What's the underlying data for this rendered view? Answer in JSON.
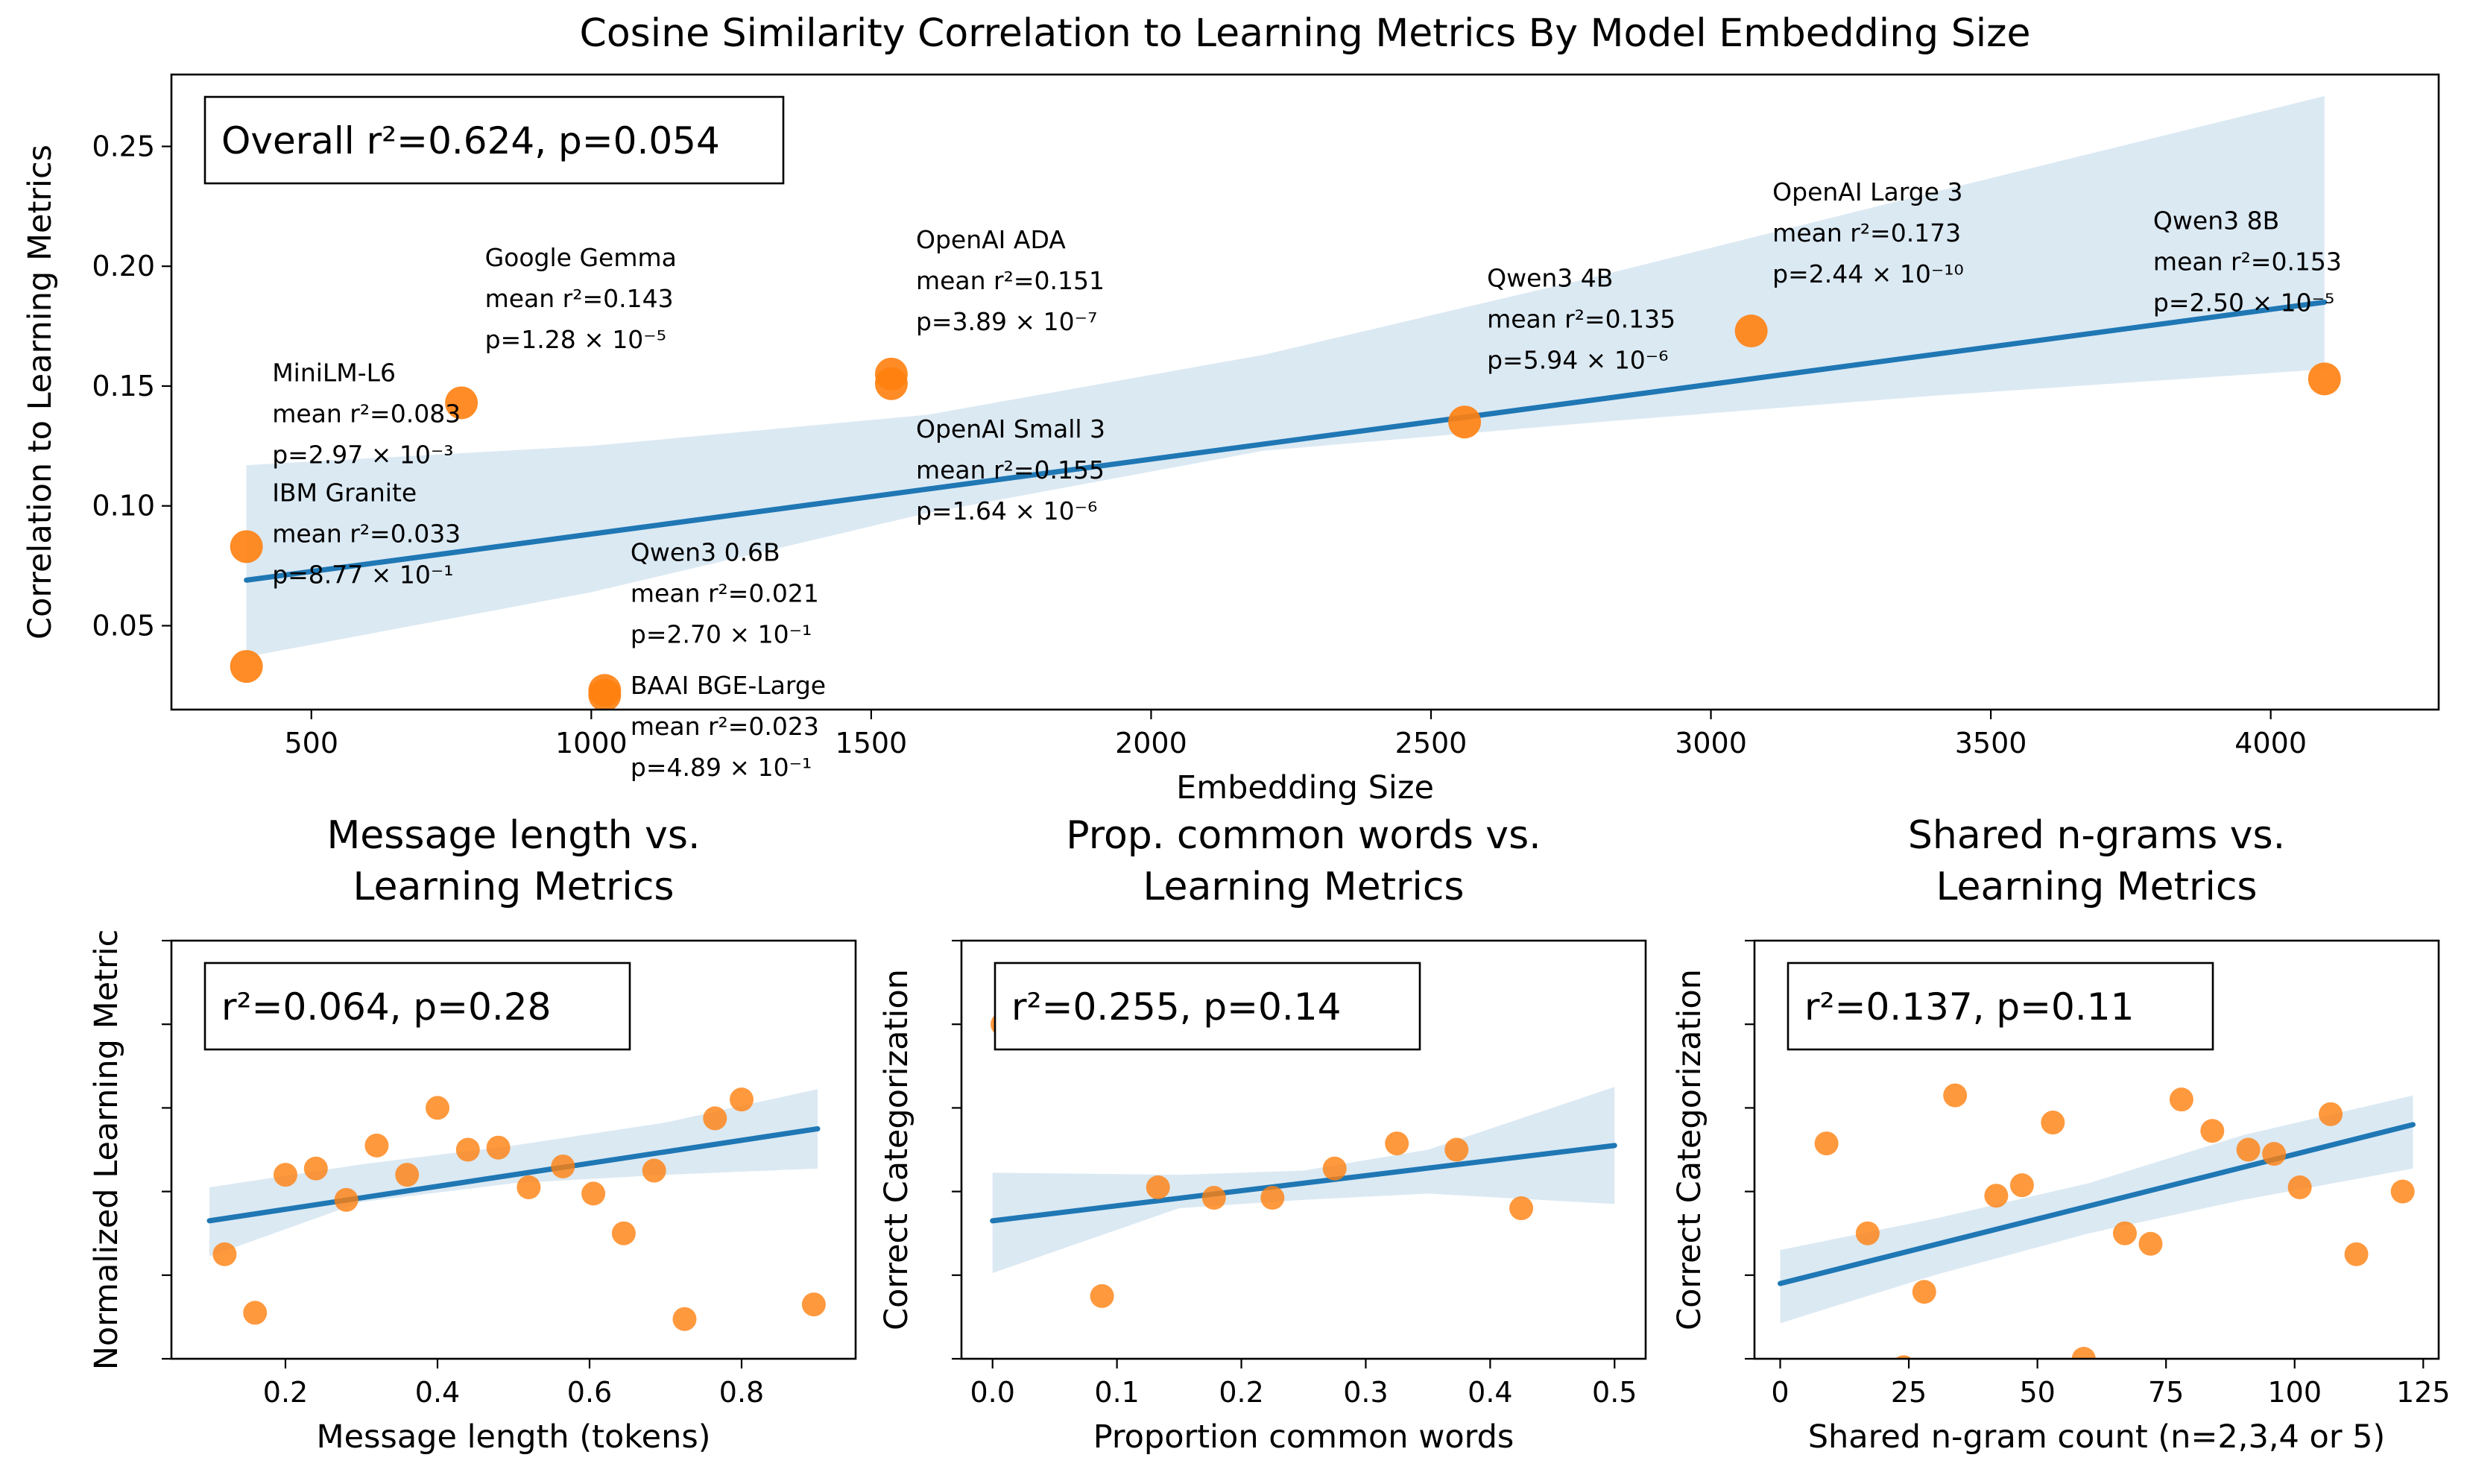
{
  "colors": {
    "points": "#ff7f0e",
    "fit": "#1f77b4",
    "band": "#1f77b4"
  },
  "chart_data": [
    {
      "type": "scatter",
      "title": "Cosine Similarity Correlation to Learning Metrics By Model Embedding Size",
      "xlabel": "Embedding Size",
      "ylabel": "Correlation to Learning Metrics",
      "xlim": [
        250,
        4300
      ],
      "ylim": [
        0.015,
        0.28
      ],
      "xticks": [
        500,
        1000,
        1500,
        2000,
        2500,
        3000,
        3500,
        4000
      ],
      "yticks": [
        0.05,
        0.1,
        0.15,
        0.2,
        0.25
      ],
      "stat": "Overall r²=0.624, p=0.054",
      "fit": {
        "x": [
          384,
          4096
        ],
        "y": [
          0.069,
          0.185
        ]
      },
      "ci_upper": [
        [
          384,
          0.117
        ],
        [
          1000,
          0.125
        ],
        [
          1600,
          0.138
        ],
        [
          2200,
          0.163
        ],
        [
          2800,
          0.196
        ],
        [
          3400,
          0.231
        ],
        [
          4096,
          0.271
        ]
      ],
      "ci_lower": [
        [
          384,
          0.037
        ],
        [
          1000,
          0.064
        ],
        [
          1600,
          0.097
        ],
        [
          2200,
          0.123
        ],
        [
          2800,
          0.135
        ],
        [
          3400,
          0.146
        ],
        [
          4096,
          0.157
        ]
      ],
      "points": [
        {
          "x": 384,
          "y": 0.083
        },
        {
          "x": 384,
          "y": 0.033
        },
        {
          "x": 768,
          "y": 0.143
        },
        {
          "x": 1024,
          "y": 0.021
        },
        {
          "x": 1024,
          "y": 0.023
        },
        {
          "x": 1536,
          "y": 0.151
        },
        {
          "x": 1536,
          "y": 0.155
        },
        {
          "x": 2560,
          "y": 0.135
        },
        {
          "x": 3072,
          "y": 0.173
        },
        {
          "x": 4096,
          "y": 0.153
        }
      ],
      "annotations": [
        {
          "lines": [
            "MiniLM-L6",
            "mean r²=0.083",
            "p=2.97 × 10⁻³"
          ],
          "x": 430,
          "y": 0.152
        },
        {
          "lines": [
            "IBM Granite",
            "mean r²=0.033",
            "p=8.77 × 10⁻¹"
          ],
          "x": 430,
          "y": 0.102
        },
        {
          "lines": [
            "Google Gemma",
            "mean r²=0.143",
            "p=1.28 × 10⁻⁵"
          ],
          "x": 810,
          "y": 0.2
        },
        {
          "lines": [
            "Qwen3 0.6B",
            "mean r²=0.021",
            "p=2.70 × 10⁻¹"
          ],
          "x": 1070,
          "y": 0.077
        },
        {
          "lines": [
            "BAAI BGE-Large",
            "mean r²=0.023",
            "p=4.89 × 10⁻¹"
          ],
          "x": 1070,
          "y": 0.0215
        },
        {
          "lines": [
            "OpenAI ADA",
            "mean r²=0.151",
            "p=3.89 × 10⁻⁷"
          ],
          "x": 1580,
          "y": 0.2075
        },
        {
          "lines": [
            "OpenAI Small 3",
            "mean r²=0.155",
            "p=1.64 × 10⁻⁶"
          ],
          "x": 1580,
          "y": 0.1285
        },
        {
          "lines": [
            "Qwen3 4B",
            "mean r²=0.135",
            "p=5.94 × 10⁻⁶"
          ],
          "x": 2600,
          "y": 0.1915
        },
        {
          "lines": [
            "OpenAI Large 3",
            "mean r²=0.173",
            "p=2.44 × 10⁻¹⁰"
          ],
          "x": 3110,
          "y": 0.2275
        },
        {
          "lines": [
            "Qwen3 8B",
            "mean r²=0.153",
            "p=2.50 × 10⁻⁵"
          ],
          "x": 3790,
          "y": 0.2155
        }
      ]
    },
    {
      "type": "scatter",
      "title": [
        "Message length vs.",
        "Learning Metrics"
      ],
      "xlabel": "Message length (tokens)",
      "ylabel": "Normalized Learning Metric",
      "xlim": [
        0.05,
        0.95
      ],
      "ylim": [
        0,
        1
      ],
      "xticks": [
        0.2,
        0.4,
        0.6,
        0.8
      ],
      "yticks": [
        0,
        0.2,
        0.4,
        0.6,
        0.8,
        1.0
      ],
      "show_ytick_labels": false,
      "stat": "r²=0.064, p=0.28",
      "fit": {
        "x": [
          0.1,
          0.9
        ],
        "y": [
          0.33,
          0.55
        ]
      },
      "ci_upper": [
        [
          0.1,
          0.41
        ],
        [
          0.3,
          0.465
        ],
        [
          0.5,
          0.51
        ],
        [
          0.7,
          0.565
        ],
        [
          0.9,
          0.645
        ]
      ],
      "ci_lower": [
        [
          0.1,
          0.245
        ],
        [
          0.3,
          0.375
        ],
        [
          0.5,
          0.42
        ],
        [
          0.7,
          0.44
        ],
        [
          0.9,
          0.455
        ]
      ],
      "points": [
        {
          "x": 0.12,
          "y": 0.25
        },
        {
          "x": 0.16,
          "y": 0.11
        },
        {
          "x": 0.2,
          "y": 0.44
        },
        {
          "x": 0.24,
          "y": 0.455
        },
        {
          "x": 0.28,
          "y": 0.38
        },
        {
          "x": 0.32,
          "y": 0.51
        },
        {
          "x": 0.36,
          "y": 0.44
        },
        {
          "x": 0.4,
          "y": 0.6
        },
        {
          "x": 0.44,
          "y": 0.5
        },
        {
          "x": 0.48,
          "y": 0.505
        },
        {
          "x": 0.52,
          "y": 0.41
        },
        {
          "x": 0.565,
          "y": 0.46
        },
        {
          "x": 0.605,
          "y": 0.395
        },
        {
          "x": 0.645,
          "y": 0.3
        },
        {
          "x": 0.685,
          "y": 0.45
        },
        {
          "x": 0.725,
          "y": 0.095
        },
        {
          "x": 0.765,
          "y": 0.575
        },
        {
          "x": 0.8,
          "y": 0.62
        },
        {
          "x": 0.895,
          "y": 0.13
        }
      ]
    },
    {
      "type": "scatter",
      "title": [
        "Prop. common words vs.",
        "Learning Metrics"
      ],
      "xlabel": "Proportion common words",
      "ylabel": "Correct Categorization",
      "xlim": [
        -0.025,
        0.525
      ],
      "ylim": [
        0,
        1
      ],
      "xticks": [
        0.0,
        0.1,
        0.2,
        0.3,
        0.4,
        0.5
      ],
      "yticks": [
        0,
        0.2,
        0.4,
        0.6,
        0.8,
        1.0
      ],
      "show_ytick_labels": false,
      "stat": "r²=0.255, p=0.14",
      "fit": {
        "x": [
          0.0,
          0.5
        ],
        "y": [
          0.33,
          0.51
        ]
      },
      "ci_upper": [
        [
          0.0,
          0.445
        ],
        [
          0.15,
          0.44
        ],
        [
          0.25,
          0.45
        ],
        [
          0.35,
          0.5
        ],
        [
          0.5,
          0.65
        ]
      ],
      "ci_lower": [
        [
          0.0,
          0.205
        ],
        [
          0.15,
          0.36
        ],
        [
          0.25,
          0.38
        ],
        [
          0.35,
          0.395
        ],
        [
          0.5,
          0.37
        ]
      ],
      "points": [
        {
          "x": 0.008,
          "y": 0.8
        },
        {
          "x": 0.088,
          "y": 0.15
        },
        {
          "x": 0.133,
          "y": 0.41
        },
        {
          "x": 0.178,
          "y": 0.385
        },
        {
          "x": 0.225,
          "y": 0.385
        },
        {
          "x": 0.275,
          "y": 0.455
        },
        {
          "x": 0.325,
          "y": 0.515
        },
        {
          "x": 0.373,
          "y": 0.5
        },
        {
          "x": 0.425,
          "y": 0.36
        }
      ]
    },
    {
      "type": "scatter",
      "title": [
        "Shared n-grams vs.",
        "Learning Metrics"
      ],
      "xlabel": "Shared n-gram count (n=2,3,4 or 5)",
      "ylabel": "Correct Categorization",
      "xlim": [
        -5,
        128
      ],
      "ylim": [
        0,
        1
      ],
      "xticks": [
        0,
        25,
        50,
        75,
        100,
        125
      ],
      "yticks": [
        0,
        0.2,
        0.4,
        0.6,
        0.8,
        1.0
      ],
      "show_ytick_labels": false,
      "stat": "r²=0.137, p=0.11",
      "fit": {
        "x": [
          0,
          123
        ],
        "y": [
          0.18,
          0.56
        ]
      },
      "ci_upper": [
        [
          0,
          0.26
        ],
        [
          30,
          0.335
        ],
        [
          60,
          0.42
        ],
        [
          90,
          0.535
        ],
        [
          123,
          0.63
        ]
      ],
      "ci_lower": [
        [
          0,
          0.085
        ],
        [
          30,
          0.2
        ],
        [
          60,
          0.3
        ],
        [
          90,
          0.38
        ],
        [
          123,
          0.455
        ]
      ],
      "points": [
        {
          "x": 9,
          "y": 0.515
        },
        {
          "x": 17,
          "y": 0.3
        },
        {
          "x": 28,
          "y": 0.16
        },
        {
          "x": 24,
          "y": -0.02
        },
        {
          "x": 34,
          "y": 0.63
        },
        {
          "x": 42,
          "y": 0.39
        },
        {
          "x": 47,
          "y": 0.415
        },
        {
          "x": 53,
          "y": 0.565
        },
        {
          "x": 59,
          "y": 0.0
        },
        {
          "x": 67,
          "y": 0.3
        },
        {
          "x": 72,
          "y": 0.275
        },
        {
          "x": 78,
          "y": 0.62
        },
        {
          "x": 84,
          "y": 0.545
        },
        {
          "x": 91,
          "y": 0.5
        },
        {
          "x": 96,
          "y": 0.49
        },
        {
          "x": 101,
          "y": 0.41
        },
        {
          "x": 107,
          "y": 0.585
        },
        {
          "x": 112,
          "y": 0.25
        },
        {
          "x": 121,
          "y": 0.4
        }
      ]
    }
  ]
}
